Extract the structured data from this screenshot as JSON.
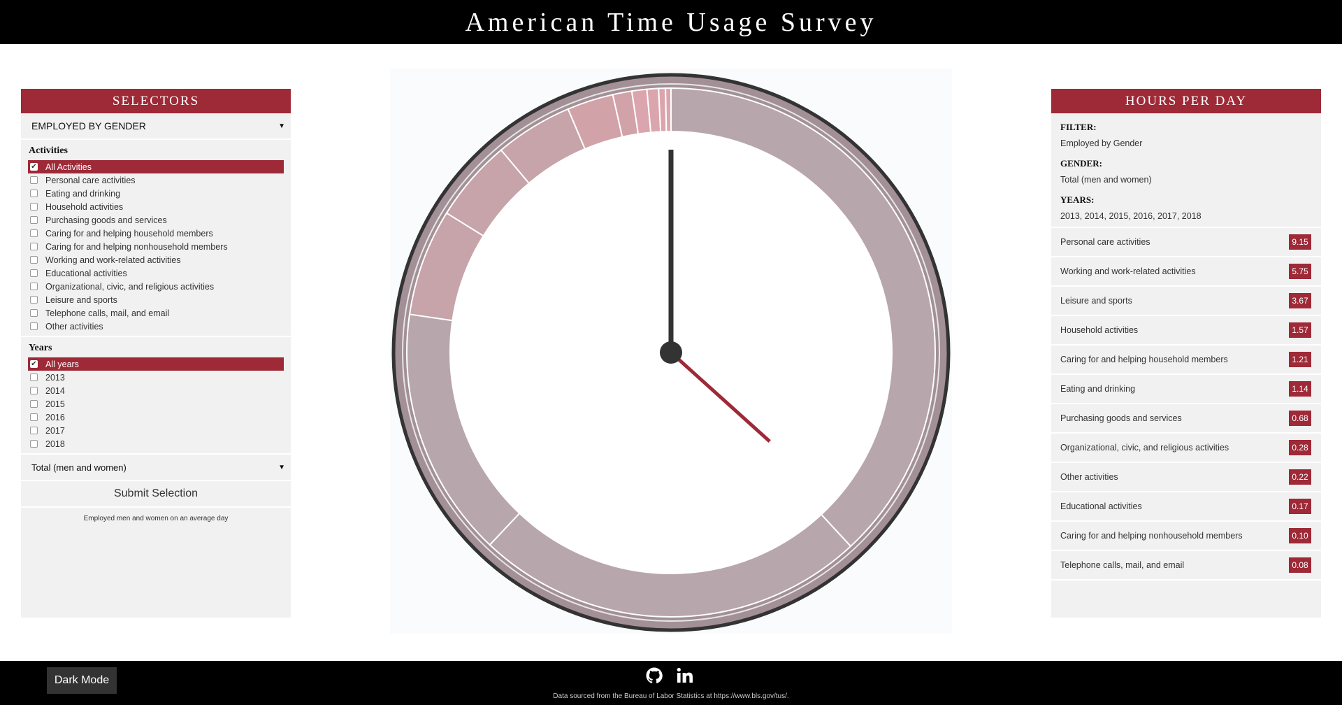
{
  "header": {
    "title": "American Time Usage Survey"
  },
  "left_panel": {
    "title": "SELECTORS",
    "filter_select": "EMPLOYED BY GENDER",
    "activities_title": "Activities",
    "activities": [
      {
        "label": "All Activities",
        "checked": true
      },
      {
        "label": "Personal care activities",
        "checked": false
      },
      {
        "label": "Eating and drinking",
        "checked": false
      },
      {
        "label": "Household activities",
        "checked": false
      },
      {
        "label": "Purchasing goods and services",
        "checked": false
      },
      {
        "label": "Caring for and helping household members",
        "checked": false
      },
      {
        "label": "Caring for and helping nonhousehold members",
        "checked": false
      },
      {
        "label": "Working and work-related activities",
        "checked": false
      },
      {
        "label": "Educational activities",
        "checked": false
      },
      {
        "label": "Organizational, civic, and religious activities",
        "checked": false
      },
      {
        "label": "Leisure and sports",
        "checked": false
      },
      {
        "label": "Telephone calls, mail, and email",
        "checked": false
      },
      {
        "label": "Other activities",
        "checked": false
      }
    ],
    "years_title": "Years",
    "years": [
      {
        "label": "All years",
        "checked": true
      },
      {
        "label": "2013",
        "checked": false
      },
      {
        "label": "2014",
        "checked": false
      },
      {
        "label": "2015",
        "checked": false
      },
      {
        "label": "2016",
        "checked": false
      },
      {
        "label": "2017",
        "checked": false
      },
      {
        "label": "2018",
        "checked": false
      }
    ],
    "gender_select": "Total (men and women)",
    "submit_label": "Submit Selection",
    "caption": "Employed men and women on an average day"
  },
  "right_panel": {
    "title": "HOURS PER DAY",
    "filter_label": "FILTER:",
    "filter_value": "Employed by Gender",
    "gender_label": "GENDER:",
    "gender_value": "Total (men and women)",
    "years_label": "YEARS:",
    "years_value": "2013, 2014, 2015, 2016, 2017, 2018",
    "rows": [
      {
        "label": "Personal care activities",
        "value": "9.15"
      },
      {
        "label": "Working and work-related activities",
        "value": "5.75"
      },
      {
        "label": "Leisure and sports",
        "value": "3.67"
      },
      {
        "label": "Household activities",
        "value": "1.57"
      },
      {
        "label": "Caring for and helping household members",
        "value": "1.21"
      },
      {
        "label": "Eating and drinking",
        "value": "1.14"
      },
      {
        "label": "Purchasing goods and services",
        "value": "0.68"
      },
      {
        "label": "Organizational, civic, and religious activities",
        "value": "0.28"
      },
      {
        "label": "Other activities",
        "value": "0.22"
      },
      {
        "label": "Educational activities",
        "value": "0.17"
      },
      {
        "label": "Caring for and helping nonhousehold members",
        "value": "0.10"
      },
      {
        "label": "Telephone calls, mail, and email",
        "value": "0.08"
      }
    ]
  },
  "clock": {
    "segments": [
      {
        "name": "Personal care activities",
        "hours": 9.15
      },
      {
        "name": "Working and work-related activities",
        "hours": 5.75
      },
      {
        "name": "Leisure and sports",
        "hours": 3.67
      },
      {
        "name": "Household activities",
        "hours": 1.57
      },
      {
        "name": "Caring for and helping household members",
        "hours": 1.21
      },
      {
        "name": "Eating and drinking",
        "hours": 1.14
      },
      {
        "name": "Purchasing goods and services",
        "hours": 0.68
      },
      {
        "name": "Organizational, civic, and religious activities",
        "hours": 0.28
      },
      {
        "name": "Other activities",
        "hours": 0.22
      },
      {
        "name": "Educational activities",
        "hours": 0.17
      },
      {
        "name": "Caring for and helping nonhousehold members",
        "hours": 0.1
      },
      {
        "name": "Telephone calls, mail, and email",
        "hours": 0.08
      }
    ],
    "segment_colors": [
      "#b8a6ad",
      "#b8a6ad",
      "#b8a6ad",
      "#c7a3aa",
      "#c7a3aa",
      "#c7a3aa",
      "#d2a2a9",
      "#d2a2a9",
      "#dba5ad",
      "#dba5ad",
      "#dba5ad",
      "#dba5ad"
    ],
    "minute_hand_minutes": 0,
    "hour_hand_hours": 4.4,
    "accent_color": "#9e2937"
  },
  "footer": {
    "dark_mode_label": "Dark Mode",
    "source_text": "Data sourced from the Bureau of Labor Statistics at https://www.bls.gov/tus/."
  }
}
